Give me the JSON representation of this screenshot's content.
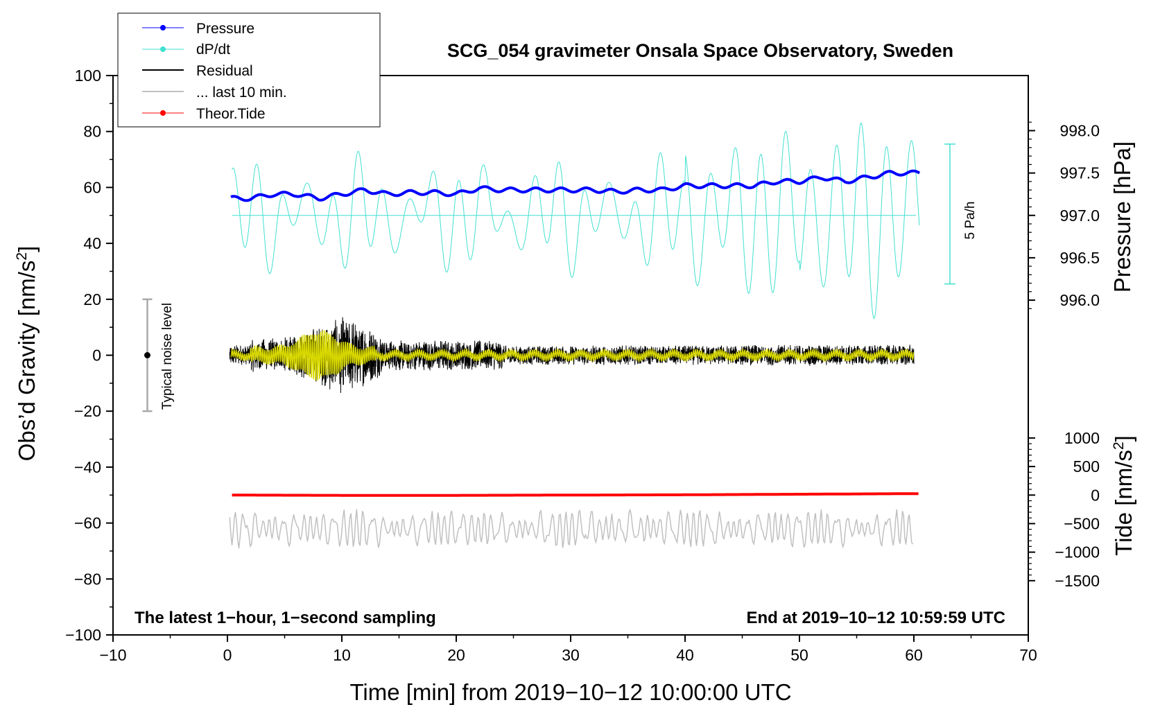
{
  "chart_data": {
    "type": "line",
    "title": "SCG_054 gravimeter Onsala Space Observatory, Sweden",
    "xlabel": "Time [min] from 2019−10−12 10:00:00 UTC",
    "ylabel_left": "Obs’d Gravity [nm/s",
    "ylabel_left_sup": "2",
    "ylabel_left_close": "]",
    "ylabel_right_pressure": "Pressure [hPa]",
    "ylabel_right_tide": "Tide [nm/s",
    "ylabel_right_tide_sup": "2",
    "ylabel_right_tide_close": "]",
    "xlim": [
      -10,
      70
    ],
    "ylim_left": [
      -100,
      100
    ],
    "x_ticks": [
      {
        "value": -10,
        "label": "−10"
      },
      {
        "value": 0,
        "label": "0"
      },
      {
        "value": 10,
        "label": "10"
      },
      {
        "value": 20,
        "label": "20"
      },
      {
        "value": 30,
        "label": "30"
      },
      {
        "value": 40,
        "label": "40"
      },
      {
        "value": 50,
        "label": "50"
      },
      {
        "value": 60,
        "label": "60"
      },
      {
        "value": 70,
        "label": "70"
      }
    ],
    "y_ticks_left": [
      {
        "value": 100,
        "label": "100"
      },
      {
        "value": 80,
        "label": "80"
      },
      {
        "value": 60,
        "label": "60"
      },
      {
        "value": 40,
        "label": "40"
      },
      {
        "value": 20,
        "label": "20"
      },
      {
        "value": 0,
        "label": "0"
      },
      {
        "value": -20,
        "label": "−20"
      },
      {
        "value": -40,
        "label": "−40"
      },
      {
        "value": -60,
        "label": "−60"
      },
      {
        "value": -80,
        "label": "−80"
      },
      {
        "value": -100,
        "label": "−100"
      }
    ],
    "pressure_axis": {
      "hpa_at_gravity_0": 995.35,
      "hpa_per_gravity_unit": 0.033,
      "ticks": [
        {
          "value": 998.0,
          "label": "998.0"
        },
        {
          "value": 997.5,
          "label": "997.5"
        },
        {
          "value": 997.0,
          "label": "997.0"
        },
        {
          "value": 996.5,
          "label": "996.5"
        },
        {
          "value": 996.0,
          "label": "996.0"
        }
      ]
    },
    "tide_axis": {
      "tide_at_gravity_0": 2450,
      "tide_per_gravity_unit": 49,
      "ticks": [
        {
          "value": 1000,
          "label": "1000"
        },
        {
          "value": 500,
          "label": "500"
        },
        {
          "value": 0,
          "label": "0"
        },
        {
          "value": -500,
          "label": "−500"
        },
        {
          "value": -1000,
          "label": "−1000"
        },
        {
          "value": -1500,
          "label": "−1500"
        }
      ]
    },
    "legend": {
      "position": "top-left",
      "entries": [
        {
          "label": "Pressure",
          "color": "#0000ff",
          "marker": true
        },
        {
          "label": "dP/dt",
          "color": "#40e0d0",
          "marker": true
        },
        {
          "label": "Residual",
          "color": "#000000",
          "marker": false
        },
        {
          "label": "... last 10 min.",
          "color": "#c0c0c0",
          "marker": false
        },
        {
          "label": "Theor.Tide",
          "color": "#ff0000",
          "marker": true
        }
      ]
    },
    "series": [
      {
        "name": "Pressure",
        "color": "#0000ff",
        "unit": "hPa",
        "x": [
          0,
          2,
          4,
          6,
          8,
          10,
          12,
          14,
          16,
          18,
          20,
          22,
          24,
          26,
          28,
          30,
          32,
          34,
          36,
          38,
          40,
          42,
          44,
          46,
          48,
          50,
          52,
          54,
          56,
          58,
          60
        ],
        "values": [
          997.2,
          997.2,
          997.25,
          997.25,
          997.2,
          997.25,
          997.3,
          997.25,
          997.27,
          997.27,
          997.25,
          997.32,
          997.3,
          997.3,
          997.3,
          997.3,
          997.3,
          997.28,
          997.3,
          997.3,
          997.35,
          997.35,
          997.35,
          997.35,
          997.4,
          997.4,
          997.45,
          997.4,
          997.45,
          997.5,
          997.5
        ]
      },
      {
        "name": "dP/dt",
        "color": "#40e0d0",
        "baseline_gravity": 50
      },
      {
        "name": "Residual",
        "color": "#000000"
      },
      {
        "name": "... last 10 min.",
        "color": "#c0c0c0",
        "offset_gravity": -62
      },
      {
        "name": "Theor.Tide",
        "color": "#ff0000",
        "unit": "nm/s2",
        "x": [
          0,
          10,
          20,
          30,
          40,
          50,
          60
        ],
        "values": [
          0,
          -5,
          -5,
          0,
          5,
          15,
          25
        ]
      },
      {
        "name": "Residual filtered",
        "color": "#d8d800"
      }
    ],
    "scale_bar": {
      "label": "5 Pa/h",
      "color": "#40e0d0"
    },
    "noise_bar": {
      "label": "Typical noise level",
      "x": -7,
      "y": 0,
      "range": [
        -20,
        20
      ],
      "color": "#a9a9a9"
    },
    "annotations": {
      "left": "The latest 1−hour, 1−second sampling",
      "right": "End at 2019−10−12 10:59:59 UTC"
    }
  }
}
